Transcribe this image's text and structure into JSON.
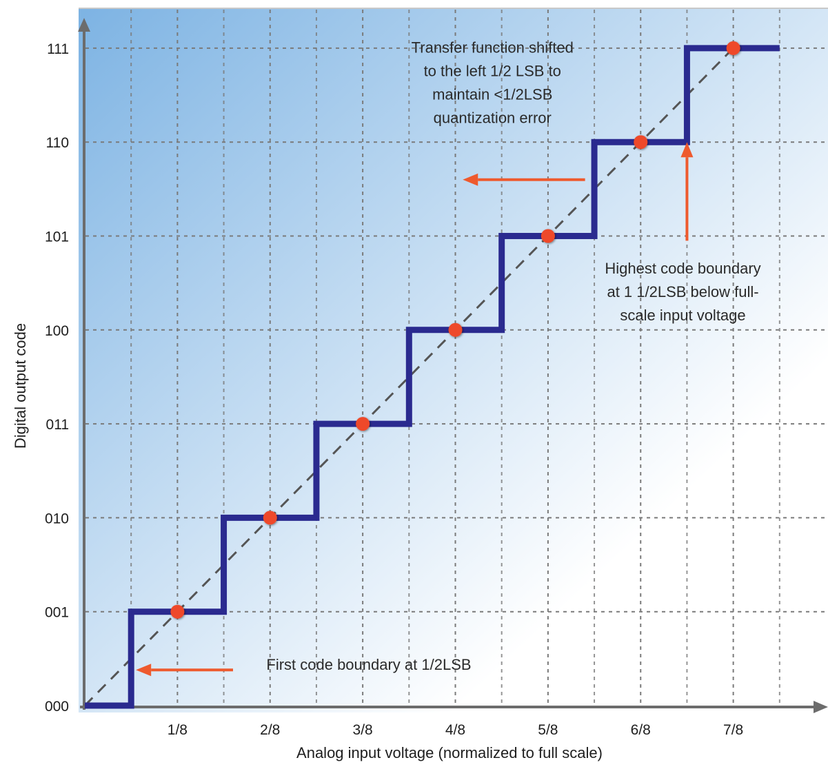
{
  "chart_data": {
    "type": "line",
    "xlabel": "Analog input voltage (normalized to full scale)",
    "ylabel": "Digital output code",
    "x_ticks": [
      {
        "value": 0.125,
        "label": "1/8"
      },
      {
        "value": 0.25,
        "label": "2/8"
      },
      {
        "value": 0.375,
        "label": "3/8"
      },
      {
        "value": 0.5,
        "label": "4/8"
      },
      {
        "value": 0.625,
        "label": "5/8"
      },
      {
        "value": 0.75,
        "label": "6/8"
      },
      {
        "value": 0.875,
        "label": "7/8"
      }
    ],
    "y_ticks": [
      "000",
      "001",
      "010",
      "011",
      "100",
      "101",
      "110",
      "111"
    ],
    "xlim": [
      0,
      1
    ],
    "ylim": [
      0,
      7.4
    ],
    "grid": true,
    "series": [
      {
        "kind": "step-transfer-function",
        "color": "#2a2a8f",
        "points": [
          [
            0,
            0
          ],
          [
            0.0625,
            0
          ],
          [
            0.0625,
            1
          ],
          [
            0.1875,
            1
          ],
          [
            0.1875,
            2
          ],
          [
            0.3125,
            2
          ],
          [
            0.3125,
            3
          ],
          [
            0.4375,
            3
          ],
          [
            0.4375,
            4
          ],
          [
            0.5625,
            4
          ],
          [
            0.5625,
            5
          ],
          [
            0.6875,
            5
          ],
          [
            0.6875,
            6
          ],
          [
            0.8125,
            6
          ],
          [
            0.8125,
            7
          ],
          [
            0.9375,
            7
          ]
        ]
      },
      {
        "kind": "ideal-diagonal",
        "style": "dashed",
        "color": "#555555",
        "points": [
          [
            0,
            0
          ],
          [
            0.875,
            7
          ]
        ]
      }
    ],
    "markers": {
      "color": "#ee4a2a",
      "points": [
        [
          0.125,
          1
        ],
        [
          0.25,
          2
        ],
        [
          0.375,
          3
        ],
        [
          0.5,
          4
        ],
        [
          0.625,
          5
        ],
        [
          0.75,
          6
        ],
        [
          0.875,
          7
        ]
      ]
    },
    "annotations": [
      {
        "id": "shift-note",
        "lines": [
          "Transfer function shifted",
          "to the left 1/2 LSB to",
          "maintain <1/2LSB",
          "quantization error"
        ],
        "anchor": [
          0.55,
          6.95
        ],
        "arrow": {
          "from": [
            0.675,
            5.6
          ],
          "to": [
            0.51,
            5.6
          ]
        }
      },
      {
        "id": "highest-boundary-note",
        "lines": [
          "Highest code boundary",
          "at 1 1/2LSB below full-",
          "scale input voltage"
        ],
        "anchor": [
          0.807,
          4.6
        ],
        "arrow": {
          "from": [
            0.8125,
            4.95
          ],
          "to": [
            0.8125,
            6.0
          ]
        }
      },
      {
        "id": "first-boundary-note",
        "lines": [
          "First code boundary at 1/2LSB"
        ],
        "anchor": [
          0.245,
          0.38
        ],
        "arrow": {
          "from": [
            0.2,
            0.38
          ],
          "to": [
            0.069,
            0.38
          ]
        }
      }
    ],
    "colors": {
      "background_gradient": [
        "#7db3e3",
        "#ffffff"
      ],
      "axis": "#6c6c6c",
      "grid": "#7a7a7a",
      "arrow": "#ee5a2e"
    }
  }
}
